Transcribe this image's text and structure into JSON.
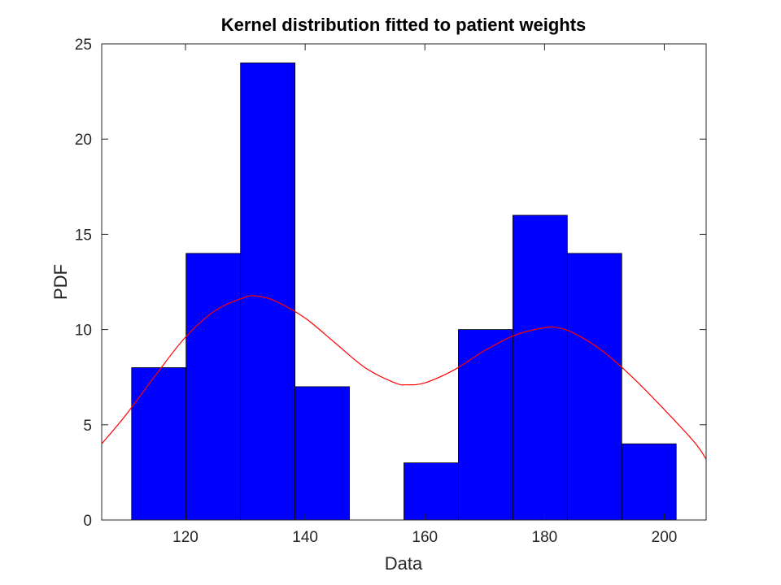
{
  "chart_data": {
    "type": "bar",
    "title": "Kernel distribution fitted to patient weights",
    "xlabel": "Data",
    "ylabel": "PDF",
    "xlim": [
      106,
      207
    ],
    "ylim": [
      0,
      25
    ],
    "xticks": [
      120,
      140,
      160,
      180,
      200
    ],
    "yticks": [
      0,
      5,
      10,
      15,
      20,
      25
    ],
    "grid": false,
    "legend": "none",
    "histogram": {
      "bin_edges": [
        111,
        120.1,
        129.2,
        138.3,
        147.4,
        156.5,
        165.6,
        174.7,
        183.8,
        192.9,
        202
      ],
      "counts": [
        8,
        14,
        24,
        7,
        0,
        3,
        10,
        16,
        14,
        4
      ],
      "color": "#0000ff",
      "edge_color": "#000000"
    },
    "kernel_fit": {
      "color": "#ff0000",
      "x": [
        106,
        110,
        115,
        120,
        125,
        130,
        132,
        135,
        140,
        145,
        150,
        155,
        157,
        160,
        165,
        170,
        175,
        180,
        182,
        185,
        190,
        195,
        200,
        205,
        207
      ],
      "y": [
        4.0,
        5.5,
        7.6,
        9.6,
        11.0,
        11.7,
        11.75,
        11.5,
        10.6,
        9.3,
        8.0,
        7.2,
        7.1,
        7.2,
        7.9,
        8.9,
        9.7,
        10.1,
        10.1,
        9.8,
        8.8,
        7.4,
        5.8,
        4.1,
        3.2
      ]
    }
  }
}
